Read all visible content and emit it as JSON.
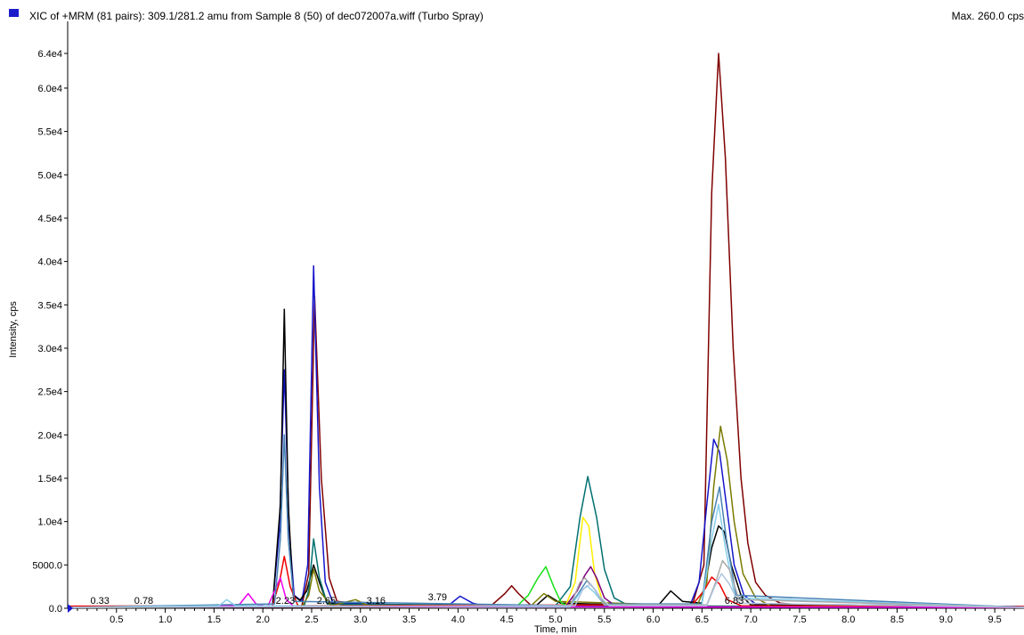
{
  "header": {
    "title": "XIC of +MRM (81 pairs): 309.1/281.2 amu from Sample 8 (50) of dec072007a.wiff (Turbo Spray)",
    "max": "Max. 260.0 cps",
    "swatch_color": "#1c1ccc"
  },
  "chart_data": {
    "type": "line",
    "xlabel": "Time, min",
    "ylabel": "Intensity, cps",
    "xlim": [
      0,
      9.8
    ],
    "ylim": [
      0,
      64000
    ],
    "x_ticks": [
      0.5,
      1.0,
      1.5,
      2.0,
      2.5,
      3.0,
      3.5,
      4.0,
      4.5,
      5.0,
      5.5,
      6.0,
      6.5,
      7.0,
      7.5,
      8.0,
      8.5,
      9.0,
      9.5
    ],
    "x_tick_labels": [
      "0.5",
      "1.0",
      "1.5",
      "2.0",
      "2.5",
      "3.0",
      "3.5",
      "4.0",
      "4.5",
      "5.0",
      "5.5",
      "6.0",
      "6.5",
      "7.0",
      "7.5",
      "8.0",
      "8.5",
      "9.0",
      "9.5"
    ],
    "y_ticks": [
      0,
      5000,
      10000,
      15000,
      20000,
      25000,
      30000,
      35000,
      40000,
      45000,
      50000,
      55000,
      60000,
      64000
    ],
    "y_tick_labels": [
      "0.0",
      "5000.0",
      "1.0e4",
      "1.5e4",
      "2.0e4",
      "2.5e4",
      "3.0e4",
      "3.5e4",
      "4.0e4",
      "4.5e4",
      "5.0e4",
      "5.5e4",
      "6.0e4",
      "6.4e4"
    ],
    "annotations": [
      {
        "x": 0.33,
        "y": 300,
        "text": "0.33"
      },
      {
        "x": 0.78,
        "y": 300,
        "text": "0.78"
      },
      {
        "x": 2.23,
        "y": 300,
        "text": "2.23"
      },
      {
        "x": 2.65,
        "y": 300,
        "text": "2.65"
      },
      {
        "x": 3.16,
        "y": 300,
        "text": "3.16"
      },
      {
        "x": 3.79,
        "y": 700,
        "text": "3.79"
      },
      {
        "x": 6.83,
        "y": 300,
        "text": "6.83"
      }
    ],
    "series": [
      {
        "color": "#800000",
        "values": [
          [
            0.0,
            200
          ],
          [
            1.8,
            250
          ],
          [
            2.4,
            300
          ],
          [
            2.47,
            4000
          ],
          [
            2.53,
            36000
          ],
          [
            2.6,
            15000
          ],
          [
            2.68,
            3500
          ],
          [
            2.76,
            800
          ],
          [
            3.3,
            200
          ],
          [
            4.35,
            400
          ],
          [
            4.48,
            1700
          ],
          [
            4.55,
            2600
          ],
          [
            4.62,
            1700
          ],
          [
            4.75,
            300
          ],
          [
            6.4,
            300
          ],
          [
            6.52,
            5000
          ],
          [
            6.6,
            48000
          ],
          [
            6.67,
            64000
          ],
          [
            6.74,
            52000
          ],
          [
            6.82,
            30000
          ],
          [
            6.9,
            15000
          ],
          [
            6.97,
            7500
          ],
          [
            7.05,
            3000
          ],
          [
            7.15,
            1500
          ],
          [
            7.3,
            600
          ],
          [
            7.6,
            300
          ],
          [
            9.8,
            200
          ]
        ]
      },
      {
        "color": "#1515cc",
        "values": [
          [
            0.0,
            200
          ],
          [
            2.1,
            300
          ],
          [
            2.17,
            9000
          ],
          [
            2.22,
            27500
          ],
          [
            2.27,
            9000
          ],
          [
            2.32,
            1500
          ],
          [
            2.4,
            800
          ],
          [
            2.46,
            5000
          ],
          [
            2.52,
            39500
          ],
          [
            2.58,
            14000
          ],
          [
            2.64,
            3000
          ],
          [
            2.72,
            600
          ],
          [
            3.9,
            300
          ],
          [
            4.02,
            1400
          ],
          [
            4.15,
            600
          ],
          [
            4.3,
            200
          ],
          [
            6.38,
            400
          ],
          [
            6.47,
            3000
          ],
          [
            6.55,
            12000
          ],
          [
            6.62,
            19500
          ],
          [
            6.68,
            18000
          ],
          [
            6.75,
            12000
          ],
          [
            6.83,
            5000
          ],
          [
            6.93,
            1500
          ],
          [
            7.05,
            500
          ],
          [
            9.8,
            200
          ]
        ]
      },
      {
        "color": "#000000",
        "values": [
          [
            0.0,
            150
          ],
          [
            2.1,
            250
          ],
          [
            2.18,
            12000
          ],
          [
            2.22,
            34500
          ],
          [
            2.26,
            12000
          ],
          [
            2.31,
            1500
          ],
          [
            2.38,
            900
          ],
          [
            2.45,
            2000
          ],
          [
            2.52,
            5000
          ],
          [
            2.58,
            3000
          ],
          [
            2.66,
            600
          ],
          [
            2.85,
            400
          ],
          [
            3.1,
            300
          ],
          [
            4.8,
            300
          ],
          [
            4.92,
            1500
          ],
          [
            5.05,
            600
          ],
          [
            6.05,
            300
          ],
          [
            6.18,
            2000
          ],
          [
            6.3,
            800
          ],
          [
            6.5,
            600
          ],
          [
            6.6,
            7000
          ],
          [
            6.67,
            9500
          ],
          [
            6.73,
            8800
          ],
          [
            6.8,
            5000
          ],
          [
            6.9,
            1500
          ],
          [
            7.0,
            400
          ],
          [
            9.8,
            150
          ]
        ]
      },
      {
        "color": "#007070",
        "values": [
          [
            0.0,
            100
          ],
          [
            2.42,
            200
          ],
          [
            2.47,
            2000
          ],
          [
            2.52,
            8000
          ],
          [
            2.58,
            3500
          ],
          [
            2.66,
            500
          ],
          [
            5.0,
            300
          ],
          [
            5.15,
            2500
          ],
          [
            5.25,
            10500
          ],
          [
            5.33,
            15200
          ],
          [
            5.42,
            10500
          ],
          [
            5.5,
            4500
          ],
          [
            5.6,
            1200
          ],
          [
            5.75,
            300
          ],
          [
            9.8,
            100
          ]
        ]
      },
      {
        "color": "#7a7a00",
        "values": [
          [
            0.0,
            100
          ],
          [
            2.4,
            200
          ],
          [
            2.47,
            1500
          ],
          [
            2.52,
            4500
          ],
          [
            2.58,
            2000
          ],
          [
            2.7,
            300
          ],
          [
            2.95,
            1000
          ],
          [
            3.08,
            300
          ],
          [
            4.75,
            300
          ],
          [
            4.88,
            1700
          ],
          [
            5.0,
            800
          ],
          [
            6.45,
            300
          ],
          [
            6.55,
            3000
          ],
          [
            6.62,
            14000
          ],
          [
            6.69,
            21000
          ],
          [
            6.76,
            17000
          ],
          [
            6.83,
            10000
          ],
          [
            6.92,
            4000
          ],
          [
            7.05,
            1200
          ],
          [
            7.2,
            300
          ],
          [
            9.8,
            100
          ]
        ]
      },
      {
        "color": "#ee0000",
        "values": [
          [
            0.0,
            250
          ],
          [
            2.1,
            300
          ],
          [
            2.17,
            3000
          ],
          [
            2.22,
            6000
          ],
          [
            2.28,
            2500
          ],
          [
            2.36,
            300
          ],
          [
            6.4,
            400
          ],
          [
            6.52,
            2000
          ],
          [
            6.6,
            3600
          ],
          [
            6.68,
            2800
          ],
          [
            6.76,
            1000
          ],
          [
            6.9,
            300
          ],
          [
            9.8,
            200
          ]
        ]
      },
      {
        "color": "#18e018",
        "values": [
          [
            0.0,
            100
          ],
          [
            4.6,
            200
          ],
          [
            4.72,
            1500
          ],
          [
            4.82,
            3500
          ],
          [
            4.9,
            4800
          ],
          [
            4.98,
            2500
          ],
          [
            5.06,
            600
          ],
          [
            5.15,
            200
          ],
          [
            9.8,
            100
          ]
        ]
      },
      {
        "color": "#ffee00",
        "values": [
          [
            0.0,
            100
          ],
          [
            5.1,
            200
          ],
          [
            5.2,
            3000
          ],
          [
            5.28,
            10500
          ],
          [
            5.34,
            9500
          ],
          [
            5.4,
            4000
          ],
          [
            5.48,
            800
          ],
          [
            5.6,
            200
          ],
          [
            9.8,
            100
          ]
        ]
      },
      {
        "color": "#7a007a",
        "values": [
          [
            0.0,
            100
          ],
          [
            5.1,
            200
          ],
          [
            5.22,
            2000
          ],
          [
            5.3,
            3800
          ],
          [
            5.36,
            4800
          ],
          [
            5.42,
            3500
          ],
          [
            5.5,
            1200
          ],
          [
            5.62,
            200
          ],
          [
            9.8,
            100
          ]
        ]
      },
      {
        "color": "#ee00ee",
        "values": [
          [
            0.0,
            100
          ],
          [
            1.75,
            300
          ],
          [
            1.85,
            1700
          ],
          [
            1.93,
            500
          ],
          [
            2.05,
            200
          ],
          [
            2.12,
            2000
          ],
          [
            2.18,
            3500
          ],
          [
            2.24,
            1000
          ],
          [
            2.32,
            200
          ],
          [
            9.8,
            100
          ]
        ]
      },
      {
        "color": "#4682b4",
        "values": [
          [
            0.0,
            100
          ],
          [
            2.12,
            500
          ],
          [
            2.18,
            8000
          ],
          [
            2.22,
            20000
          ],
          [
            2.26,
            8000
          ],
          [
            2.32,
            800
          ],
          [
            5.15,
            300
          ],
          [
            5.25,
            2000
          ],
          [
            5.32,
            3200
          ],
          [
            5.4,
            2200
          ],
          [
            5.5,
            500
          ],
          [
            6.5,
            500
          ],
          [
            6.6,
            10000
          ],
          [
            6.68,
            14000
          ],
          [
            6.75,
            8000
          ],
          [
            6.85,
            1500
          ],
          [
            9.8,
            100
          ]
        ]
      },
      {
        "color": "#87ceeb",
        "values": [
          [
            0.0,
            100
          ],
          [
            1.55,
            300
          ],
          [
            1.63,
            1000
          ],
          [
            1.72,
            300
          ],
          [
            5.15,
            200
          ],
          [
            5.25,
            1800
          ],
          [
            5.32,
            2600
          ],
          [
            5.4,
            1800
          ],
          [
            5.5,
            400
          ],
          [
            6.5,
            400
          ],
          [
            6.6,
            8000
          ],
          [
            6.67,
            12000
          ],
          [
            6.74,
            7000
          ],
          [
            6.84,
            1200
          ],
          [
            9.8,
            100
          ]
        ]
      },
      {
        "color": "#a9a9a9",
        "values": [
          [
            0.0,
            100
          ],
          [
            5.15,
            300
          ],
          [
            5.25,
            3000
          ],
          [
            5.3,
            3500
          ],
          [
            5.38,
            2500
          ],
          [
            5.5,
            400
          ],
          [
            6.55,
            400
          ],
          [
            6.64,
            3000
          ],
          [
            6.71,
            5500
          ],
          [
            6.78,
            4500
          ],
          [
            6.88,
            1000
          ],
          [
            9.8,
            100
          ]
        ]
      },
      {
        "color": "#b0c4de",
        "values": [
          [
            0.0,
            100
          ],
          [
            5.2,
            300
          ],
          [
            5.28,
            2200
          ],
          [
            5.36,
            2800
          ],
          [
            5.44,
            1500
          ],
          [
            5.55,
            300
          ],
          [
            6.55,
            300
          ],
          [
            6.63,
            2500
          ],
          [
            6.7,
            4000
          ],
          [
            6.78,
            2800
          ],
          [
            6.88,
            600
          ],
          [
            9.8,
            100
          ]
        ]
      }
    ]
  }
}
